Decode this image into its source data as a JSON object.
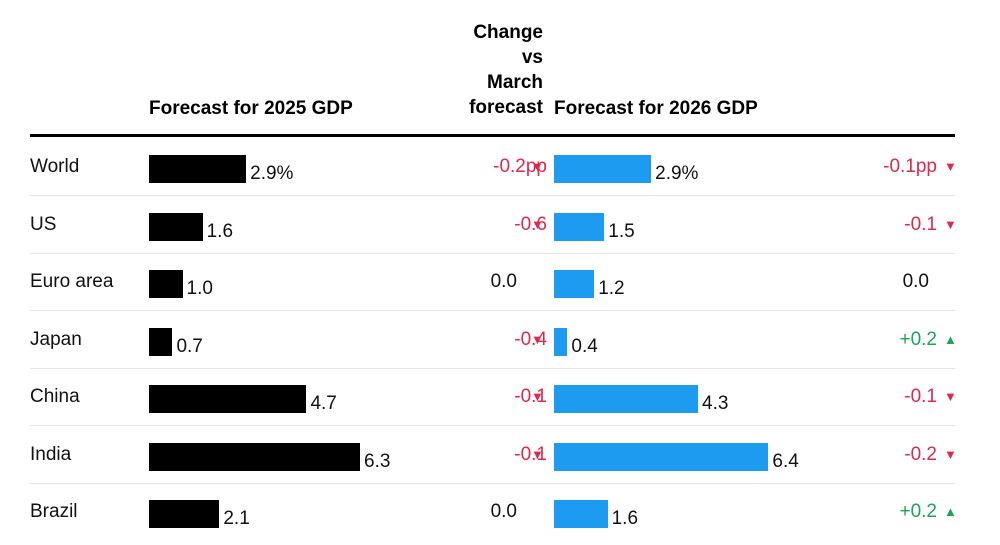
{
  "headers": {
    "forecast_2025": "Forecast for 2025 GDP",
    "change": "Change\nvs\nMarch\nforecast",
    "forecast_2026": "Forecast for 2026 GDP"
  },
  "colors": {
    "bar_2025": "#000000",
    "bar_2026": "#1c9bf0",
    "negative": "#e0284e",
    "positive": "#1ba555"
  },
  "chart_data": {
    "type": "table",
    "categories": [
      "World",
      "US",
      "Euro area",
      "Japan",
      "China",
      "India",
      "Brazil"
    ],
    "rows": [
      {
        "country": "World",
        "gdp_2025": 2.9,
        "label_2025": "2.9%",
        "change_2025": "-0.2pp",
        "dir_2025": "down",
        "gdp_2026": 2.9,
        "label_2026": "2.9%",
        "change_2026": "-0.1pp",
        "dir_2026": "down"
      },
      {
        "country": "US",
        "gdp_2025": 1.6,
        "label_2025": "1.6",
        "change_2025": "-0.6",
        "dir_2025": "down",
        "gdp_2026": 1.5,
        "label_2026": "1.5",
        "change_2026": "-0.1",
        "dir_2026": "down"
      },
      {
        "country": "Euro area",
        "gdp_2025": 1.0,
        "label_2025": "1.0",
        "change_2025": "0.0",
        "dir_2025": "none",
        "gdp_2026": 1.2,
        "label_2026": "1.2",
        "change_2026": "0.0",
        "dir_2026": "none"
      },
      {
        "country": "Japan",
        "gdp_2025": 0.7,
        "label_2025": "0.7",
        "change_2025": "-0.4",
        "dir_2025": "down",
        "gdp_2026": 0.4,
        "label_2026": "0.4",
        "change_2026": "+0.2",
        "dir_2026": "up"
      },
      {
        "country": "China",
        "gdp_2025": 4.7,
        "label_2025": "4.7",
        "change_2025": "-0.1",
        "dir_2025": "down",
        "gdp_2026": 4.3,
        "label_2026": "4.3",
        "change_2026": "-0.1",
        "dir_2026": "down"
      },
      {
        "country": "India",
        "gdp_2025": 6.3,
        "label_2025": "6.3",
        "change_2025": "-0.1",
        "dir_2025": "down",
        "gdp_2026": 6.4,
        "label_2026": "6.4",
        "change_2026": "-0.2",
        "dir_2026": "down"
      },
      {
        "country": "Brazil",
        "gdp_2025": 2.1,
        "label_2025": "2.1",
        "change_2025": "0.0",
        "dir_2025": "none",
        "gdp_2026": 1.6,
        "label_2026": "1.6",
        "change_2026": "+0.2",
        "dir_2026": "up"
      }
    ]
  }
}
